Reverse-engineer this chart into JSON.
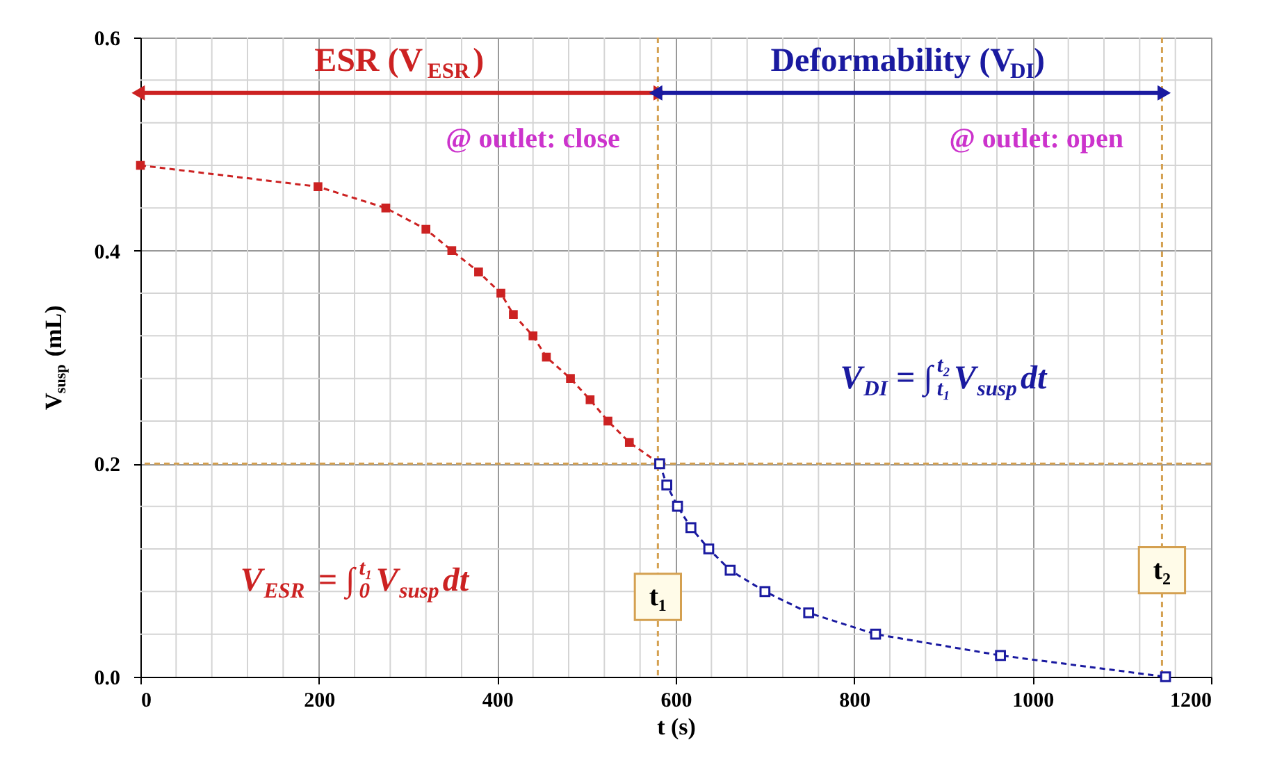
{
  "chart_data": {
    "type": "line",
    "xlabel": "t (s)",
    "ylabel": "V$_{susp}$ (mL)",
    "xlim": [
      0,
      1200
    ],
    "xticks": [
      0,
      200,
      400,
      600,
      800,
      {
        "value": 1000,
        "label": "1000"
      },
      {
        "value": 1200,
        "label": "1200"
      }
    ],
    "ylim": [
      0,
      0.6
    ],
    "yticks": [
      {
        "value": 0,
        "label": "0.0"
      },
      {
        "value": 0.2,
        "label": "0.2"
      },
      {
        "value": 0.4,
        "label": "0.4"
      },
      {
        "value": 0.6,
        "label": "0.6"
      }
    ],
    "grid": true,
    "marker": "square",
    "line_style": "dashed",
    "series": [
      {
        "color": "#cc2222",
        "x": [
          0,
          199,
          275,
          320,
          349,
          379,
          404,
          418,
          440,
          455,
          482,
          504,
          524,
          548,
          582
        ],
        "values": [
          0.48,
          0.46,
          0.44,
          0.42,
          0.4,
          0.38,
          0.36,
          0.34,
          0.32,
          0.3,
          0.28,
          0.26,
          0.24,
          0.22,
          0.2
        ]
      },
      {
        "color": "#1a1aa0",
        "x": [
          582,
          590,
          602,
          617,
          637,
          661,
          700,
          749,
          824,
          964,
          1149
        ],
        "values": [
          0.2,
          0.18,
          0.16,
          0.14,
          0.12,
          0.1,
          0.08,
          0.06,
          0.04,
          0.02,
          0.0
        ]
      }
    ],
    "ref_lines": [
      {
        "axis": "x",
        "value": 580,
        "label": "t₁",
        "color": "#d4a050",
        "line_style": "dashed"
      },
      {
        "axis": "x",
        "value": 1145,
        "label": "t₂",
        "color": "#d4a050",
        "line_style": "dashed"
      },
      {
        "axis": "y",
        "value": 0.2,
        "color": "#d4a050",
        "line_style": "dashed"
      }
    ],
    "annotations": [
      "ESR (V$_{ESR}$)",
      "@ outlet: close",
      "Deformability (V$_{DI}$)",
      "@ outlet: open",
      "V$_{DI}$ = ∫$^{t₂}$$_{t₁}$V$_{susp}$dt",
      "V$_{ESR}$ = ∫$^{t₁}$$_{0}$V$_{susp}$dt"
    ]
  }
}
